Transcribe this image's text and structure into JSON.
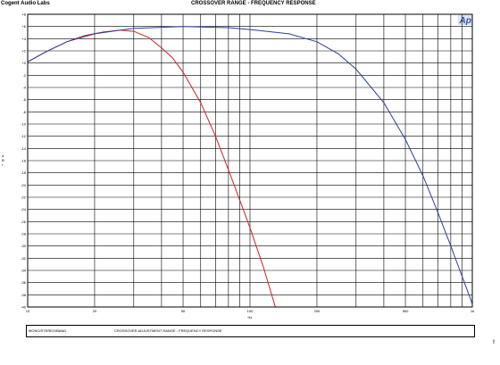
{
  "header": {
    "company": "Cogent Audio Labs",
    "title": "CROSSOVER RANGE - FREQUENCY RESPONSE",
    "logo_text": "Ap"
  },
  "footer": {
    "left": "MONO/STEREO/BAND",
    "right": "CROSSOVER ADJUSTMENT RANGE - FREQUENCY RESPONSE"
  },
  "corner_mark": "!",
  "colors": {
    "red_series": "#cc2222",
    "blue_series": "#2a3f9a",
    "logo": "#3355aa"
  },
  "chart_data": {
    "type": "line",
    "title": "CROSSOVER RANGE - FREQUENCY RESPONSE",
    "xlabel": "Hz",
    "ylabel": "d B r",
    "xscale": "log",
    "xlim": [
      10,
      1000
    ],
    "ylim": [
      -40,
      8
    ],
    "grid": true,
    "x_ticks": [
      {
        "value": 10,
        "label": "10"
      },
      {
        "value": 20,
        "label": "20"
      },
      {
        "value": 50,
        "label": "50"
      },
      {
        "value": 100,
        "label": "100"
      },
      {
        "value": 200,
        "label": "200"
      },
      {
        "value": 500,
        "label": "500"
      },
      {
        "value": 1000,
        "label": "1k"
      }
    ],
    "y_ticks": [
      8,
      6,
      4,
      2,
      0,
      -2,
      -4,
      -6,
      -8,
      -10,
      -12,
      -14,
      -16,
      -18,
      -20,
      -22,
      -24,
      -26,
      -28,
      -30,
      -32,
      -34,
      -36,
      -38,
      -40
    ],
    "y_tick_labels": [
      "+8",
      "+6",
      "+4",
      "+2",
      "+0",
      "-2",
      "-4",
      "-6",
      "-8",
      "-10",
      "-12",
      "-14",
      "-16",
      "-18",
      "-20",
      "-22",
      "-24",
      "-26",
      "-28",
      "-30",
      "-32",
      "-34",
      "-36",
      "-38",
      "-40"
    ],
    "series": [
      {
        "color": "#cc2222",
        "x": [
          10,
          12,
          15,
          18,
          22,
          26,
          30,
          35,
          40,
          45,
          50,
          60,
          70,
          80,
          90,
          100,
          115,
          130
        ],
        "y": [
          0.2,
          1.8,
          3.5,
          4.5,
          5.1,
          5.4,
          5.2,
          4.2,
          2.5,
          0.8,
          -1.5,
          -6.5,
          -12,
          -17.5,
          -22.5,
          -27,
          -33.5,
          -40
        ]
      },
      {
        "color": "#2a3f9a",
        "x": [
          10,
          12,
          15,
          20,
          30,
          50,
          80,
          100,
          150,
          200,
          250,
          300,
          400,
          500,
          600,
          700,
          800,
          900,
          1000
        ],
        "y": [
          0.2,
          1.8,
          3.5,
          4.8,
          5.7,
          6.0,
          5.8,
          5.5,
          4.8,
          3.5,
          1.5,
          -1,
          -6.5,
          -12.5,
          -18.5,
          -24.5,
          -30,
          -35,
          -39.5
        ]
      }
    ]
  }
}
